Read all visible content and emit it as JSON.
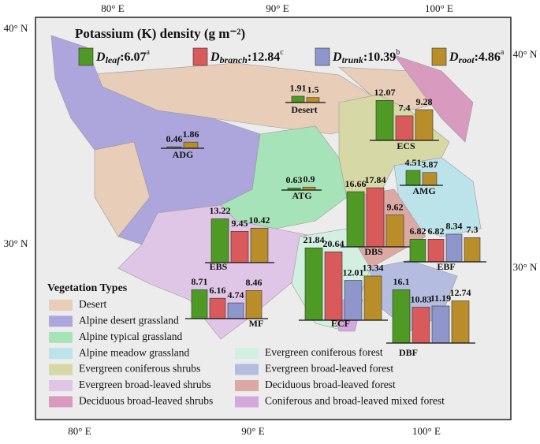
{
  "title": "Potassium (K) density (g m⁻²)",
  "map": {
    "lon_labels": [
      "80° E",
      "90° E",
      "100° E"
    ],
    "lat_labels": [
      "40° N",
      "30° N"
    ]
  },
  "summary": {
    "symbol": "D",
    "separator": ":",
    "items": [
      {
        "subscript": "leaf",
        "value": "6.07",
        "letter": "a",
        "color": "#4f9a24"
      },
      {
        "subscript": "branch",
        "value": "12.84",
        "letter": "c",
        "color": "#d85a5a"
      },
      {
        "subscript": "trunk",
        "value": "10.39",
        "letter": "b",
        "color": "#8e96cc"
      },
      {
        "subscript": "root",
        "value": "4.86",
        "letter": "a",
        "color": "#b88d2a"
      }
    ]
  },
  "sites": [
    {
      "name": "Desert",
      "values": [
        1.91,
        null,
        null,
        1.5
      ]
    },
    {
      "name": "ADG",
      "values": [
        0.46,
        null,
        null,
        1.86
      ]
    },
    {
      "name": "ECS",
      "values": [
        12.07,
        7.4,
        null,
        9.28
      ]
    },
    {
      "name": "AMG",
      "values": [
        4.51,
        null,
        null,
        3.87
      ]
    },
    {
      "name": "ATG",
      "values": [
        0.63,
        null,
        null,
        0.9
      ]
    },
    {
      "name": "EBS",
      "values": [
        13.22,
        9.45,
        null,
        10.42
      ]
    },
    {
      "name": "DBS",
      "values": [
        16.66,
        17.84,
        null,
        9.62
      ]
    },
    {
      "name": "EBF",
      "values": [
        6.82,
        6.82,
        8.34,
        7.3
      ]
    },
    {
      "name": "MF",
      "values": [
        8.71,
        6.16,
        4.74,
        8.46
      ]
    },
    {
      "name": "ECF",
      "values": [
        21.84,
        20.64,
        12.01,
        13.34
      ]
    },
    {
      "name": "DBF",
      "values": [
        16.1,
        10.83,
        11.19,
        12.74
      ]
    }
  ],
  "legend": {
    "title": "Vegetation Types",
    "items": [
      {
        "label": "Desert",
        "color": "#e8cdb8"
      },
      {
        "label": "Alpine desert grassland",
        "color": "#aca6dd"
      },
      {
        "label": "Alpine typical grassland",
        "color": "#a7e3b8"
      },
      {
        "label": "Alpine meadow grassland",
        "color": "#bde3ea"
      },
      {
        "label": "Evergreen coniferous shrubs",
        "color": "#d6d9a6"
      },
      {
        "label": "Evergreen  broad-leaved shrubs",
        "color": "#e0c6e6"
      },
      {
        "label": "Deciduous broad-leaved shrubs",
        "color": "#d99abf"
      },
      {
        "label": "Evergreen coniferous forest",
        "color": "#d3efe2"
      },
      {
        "label": "Evergreen broad-leaved forest",
        "color": "#b4bde0"
      },
      {
        "label": "Deciduous broad-leaved forest",
        "color": "#dba8a4"
      },
      {
        "label": "Coniferous and broad-leaved mixed forest",
        "color": "#d4a8dc"
      }
    ]
  }
}
